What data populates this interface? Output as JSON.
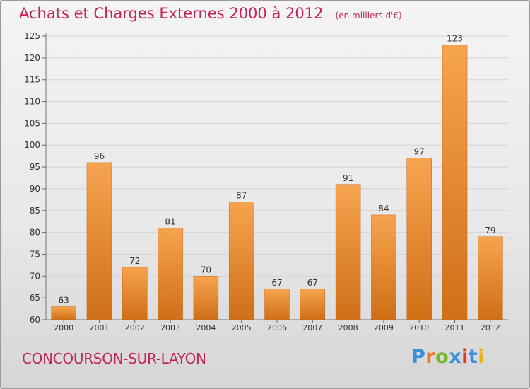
{
  "chart_data": {
    "type": "bar",
    "title": "Achats et Charges Externes 2000 à 2012",
    "unit": "(en milliers d'€)",
    "categories": [
      "2000",
      "2001",
      "2002",
      "2003",
      "2004",
      "2005",
      "2006",
      "2007",
      "2008",
      "2009",
      "2010",
      "2011",
      "2012"
    ],
    "values": [
      63,
      96,
      72,
      81,
      70,
      87,
      67,
      67,
      91,
      84,
      97,
      123,
      79
    ],
    "ylim": [
      60,
      125
    ],
    "yticks": [
      60,
      65,
      70,
      75,
      80,
      85,
      90,
      95,
      100,
      105,
      110,
      115,
      120,
      125
    ],
    "grid": true,
    "xlabel": "",
    "ylabel": "",
    "bar_color_top": "#f7a44e",
    "bar_color_bottom": "#cf6f18",
    "title_color": "#c4245a"
  },
  "footer": {
    "commune": "CONCOURSON-SUR-LAYON",
    "logo_text": "Proxiti",
    "logo_colors": [
      "#3a8fd9",
      "#e8782a",
      "#79b82c",
      "#3a8fd9",
      "#e6302c",
      "#3a8fd9",
      "#e8b422"
    ]
  }
}
